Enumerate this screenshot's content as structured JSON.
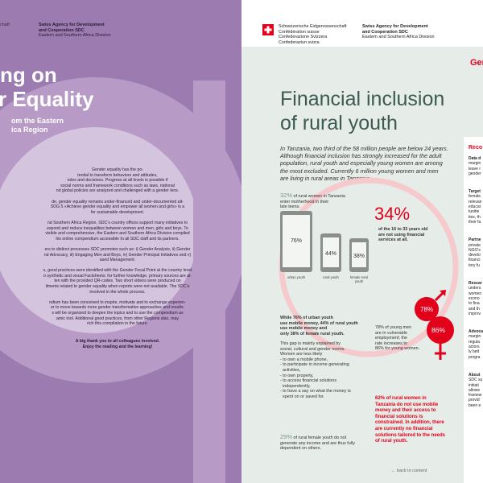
{
  "left_page": {
    "header_fragment": "chaft",
    "agency_name": [
      "Swiss Agency for Development",
      "and Cooperation SDC"
    ],
    "agency_division": "Eastern and Southern Africa Division",
    "title_lines": [
      "ng on",
      "r Equality"
    ],
    "subtitle_lines": [
      "om the Eastern",
      "ica Region"
    ],
    "body_lines": [
      "Gender equality has the po-",
      "tential to transform behaviors and attitudes,",
      "roles and decisions. Progress at all levels is possible if",
      "social norms and framework conditions such as laws, national",
      "nd global policies are analyzed and challenged with a gender lens.",
      "",
      "de, gender equality remains under-financed and under-documented alt-",
      "SDG 5 «Achieve gender equality and empower all women and girls» is a",
      "for sustainable development.",
      "",
      "nd Southern Africa Region, SDC’s country offices support many initiatives to",
      "espond and reduce inequalities between women and men, girls and boys. To",
      "visible and comprehensive, the Eastern and Southern Africa Division compiled",
      "his online compendium accessible to all SDC staff and its partners.",
      "",
      "ers to distinct processes SDC promotes such as: i) Gender Analysis, ii) Gender",
      "nd Advocacy, iii) Engaging Men and Boys, iv) Gender Principal Initiatives and v)",
      "ased Management.",
      "",
      "s, good practices were identified with the Gender Focal Point at the country level",
      "o synthetic and visual Factsheets; for further knowledge, primary sources are al-",
      "ten with the provided QR-codes. Two short videos were produced on",
      "ilments related to gender equality when reports were not available. The SDC’s",
      "involved in the whole process.",
      "",
      "ndium has been conceived to inspire, motivate and to exchange experien-",
      "er to move towards more gender transformative approaches and results.",
      "s will be organized to deepen the topics and to use the compendium as",
      "amic tool. Additional good practices, from other Regions also, may",
      "rich this compilation in the future."
    ],
    "closing_lines": [
      "A big thank you to all colleagues involved.",
      "Enjoy the reading and the learning!"
    ]
  },
  "right_page": {
    "confed_lines": [
      "Schweizerische Eidgenossenschaft",
      "Confédération suisse",
      "Confederazione Svizzera",
      "Confederaziun svizra"
    ],
    "agency_name": [
      "Swiss Agency for Development",
      "and Cooperation SDC"
    ],
    "agency_division": "Eastern and Southern Africa Division",
    "section_tab": "Gen",
    "title_lines": [
      "Financial inclusion",
      "of rural youth"
    ],
    "intro_lines": [
      "In Tanzania, two third of the 58 million people are below 24 years.",
      "Although financial inclusion has strongly increased for the adult",
      "population, rural youth and especially young women are among",
      "the most excluded. Currently 6 million young women and men",
      "are living in rural areas in Tanzania."
    ],
    "stat_32_pct": "32%",
    "stat_32_lines": [
      "of rural women in Tanzania",
      "enter motherhood in their",
      "late teens."
    ],
    "stat_34_pct": "34%",
    "stat_34_lines": [
      "of the 16 to 33 years old",
      "are not using financial",
      "services at all."
    ],
    "phones": [
      {
        "value": "76%",
        "label": [
          "urban youth"
        ],
        "fraction": 0.76
      },
      {
        "value": "44%",
        "label": [
          "rural youth"
        ],
        "fraction": 0.44
      },
      {
        "value": "38%",
        "label": [
          "female rural",
          "youth"
        ],
        "fraction": 0.38
      }
    ],
    "mobile_money_lines": [
      "While 76% of urban youth",
      "use mobile money, 44% of rural youth",
      "use mobile money and",
      "only 38% of female rural youth."
    ],
    "gap_lines": [
      "This gap is mainly explained by",
      "social, cultural and gender norms.",
      "Women are less likely",
      "- to own a mobile phone,",
      "- to participate in income generating",
      "  activities,",
      "- to own property,",
      "- to access financial solutions",
      "  independently,",
      "- to have a say on what the money is",
      "  spent on or saved for."
    ],
    "male_pct": "78%",
    "female_pct": "86%",
    "vuln_lines": [
      "78% of young men",
      "are in vulnerable",
      "employment; the",
      "rate increases to",
      "86% for young women."
    ],
    "stat_62_lines": [
      "62% of rural women in",
      "Tanzania do not use mobile",
      "money and their access to",
      "financial solutions is",
      "constrained. In addition, there",
      "are currently no financial",
      "solutions tailored to the needs",
      "of rural youth."
    ],
    "stat_29_pct": "29%",
    "stat_29_lines": [
      "of rural female youth do not",
      "generate any income and are thus fully",
      "dependent on others."
    ],
    "back_link": "← back to content",
    "sidebar": {
      "heading": "Reco",
      "items": [
        [
          "Data d",
          "margin",
          "leave r",
          "gender"
        ],
        [
          "Target",
          "female",
          "relevan",
          "educat",
          "tunitie",
          "ties, th",
          "their fa"
        ],
        [
          "Partne",
          "private",
          "NGO's",
          "develo",
          "financi",
          "tory fu"
        ],
        [
          "Resear",
          "unders",
          "women",
          "econo",
          "to fina",
          "and th",
          "improv"
        ],
        [
          "Advoca",
          "margin",
          "regula",
          "actors",
          "ly bett",
          "progra"
        ],
        [
          "About",
          "SDC su",
          "initiati",
          "allowe",
          "framew",
          "provid",
          "been e"
        ]
      ]
    }
  }
}
